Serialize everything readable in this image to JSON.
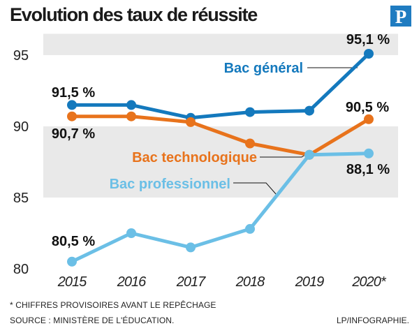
{
  "header": {
    "title": "Evolution des taux de réussite",
    "logo_letter": "P",
    "logo_color": "#1f7cc1"
  },
  "chart_data": {
    "type": "line",
    "title": "Evolution des taux de réussite",
    "xlabel": "",
    "ylabel": "",
    "categories": [
      "2015",
      "2016",
      "2017",
      "2018",
      "2019",
      "2020*"
    ],
    "yticks": [
      "80",
      "85",
      "90",
      "95"
    ],
    "ylim": [
      80,
      96.5
    ],
    "grid": "alternating horizontal bands",
    "series": [
      {
        "name": "Bac général",
        "color": "#1479bd",
        "values": [
          91.5,
          91.5,
          90.6,
          91.0,
          91.1,
          95.1
        ],
        "labels": [
          {
            "index": 0,
            "text": "91,5 %"
          },
          {
            "index": 5,
            "text": "95,1 %"
          }
        ]
      },
      {
        "name": "Bac technologique",
        "color": "#e8731c",
        "values": [
          90.7,
          90.7,
          90.3,
          88.8,
          88.0,
          90.5
        ],
        "labels": [
          {
            "index": 0,
            "text": "90,7 %"
          },
          {
            "index": 5,
            "text": "90,5 %"
          }
        ]
      },
      {
        "name": "Bac professionnel",
        "color": "#6bbfe6",
        "values": [
          80.5,
          82.5,
          81.5,
          82.8,
          88.0,
          88.1
        ],
        "labels": [
          {
            "index": 0,
            "text": "80,5 %"
          },
          {
            "index": 5,
            "text": "88,1 %"
          }
        ]
      }
    ]
  },
  "footer": {
    "note": "* CHIFFRES PROVISOIRES AVANT LE REPÊCHAGE",
    "source": "SOURCE : MINISTÈRE DE L'ÉDUCATION.",
    "credit": "LP/INFOGRAPHIE."
  }
}
